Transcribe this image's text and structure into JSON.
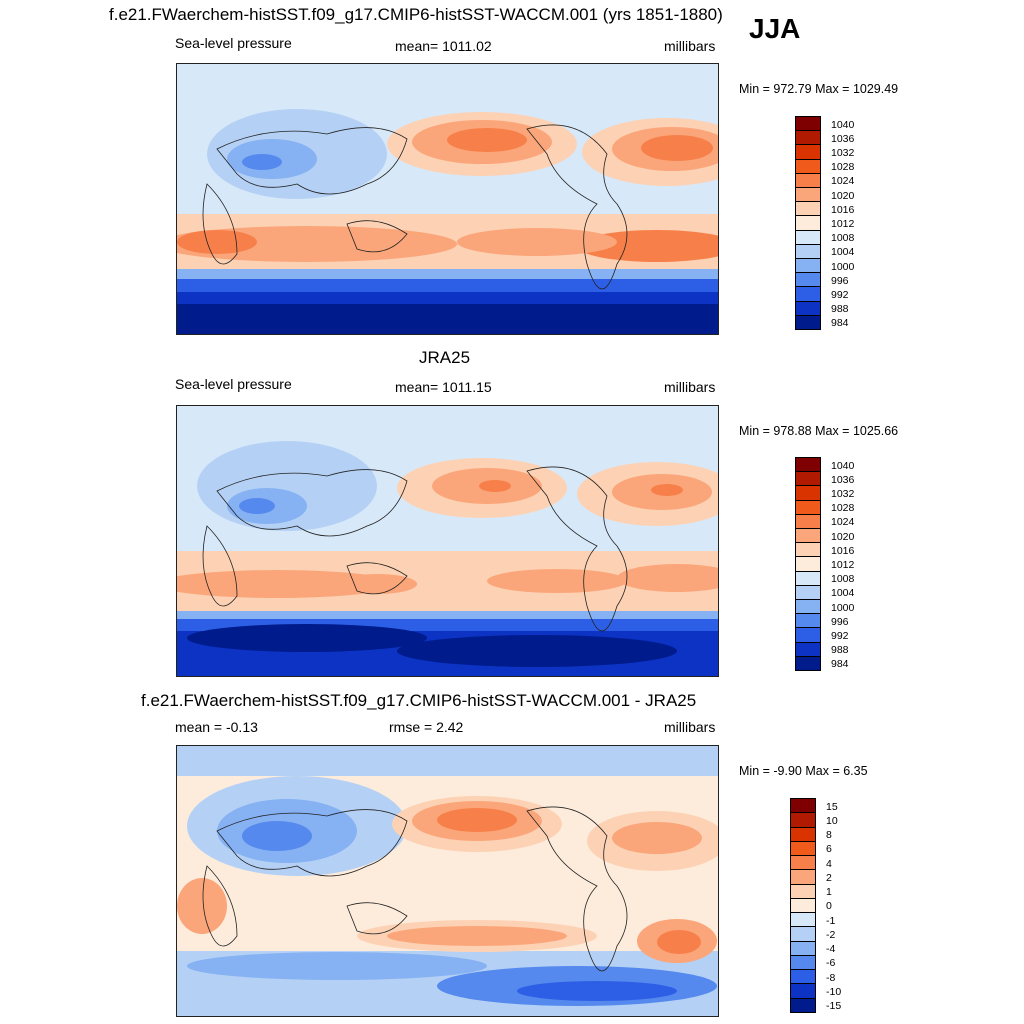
{
  "header": {
    "title": "f.e21.FWaerchem-histSST.f09_g17.CMIP6-histSST-WACCM.001 (yrs 1851-1880)",
    "season": "JJA"
  },
  "panels": [
    {
      "id": "model",
      "heading": "",
      "left_label": "Sea-level pressure",
      "center_label": "mean= 1011.02",
      "right_label": "millibars",
      "minmax": "Min = 972.79 Max = 1029.49",
      "colorbar": {
        "labels": [
          "1040",
          "1036",
          "1032",
          "1028",
          "1024",
          "1020",
          "1016",
          "1012",
          "1008",
          "1004",
          "1000",
          "996",
          "992",
          "988",
          "984"
        ],
        "colors": [
          "#7f0000",
          "#b01a00",
          "#d93300",
          "#f05a1a",
          "#f7804a",
          "#fba67a",
          "#fdd2b4",
          "#fdecdc",
          "#d7e8f8",
          "#b4d1f5",
          "#86b1f2",
          "#5589ee",
          "#2d5fe6",
          "#0c33c4",
          "#001b8c"
        ]
      }
    },
    {
      "id": "obs",
      "heading": "JRA25",
      "left_label": "Sea-level pressure",
      "center_label": "mean= 1011.15",
      "right_label": "millibars",
      "minmax": "Min = 978.88 Max = 1025.66",
      "colorbar": {
        "labels": [
          "1040",
          "1036",
          "1032",
          "1028",
          "1024",
          "1020",
          "1016",
          "1012",
          "1008",
          "1004",
          "1000",
          "996",
          "992",
          "988",
          "984"
        ],
        "colors": [
          "#7f0000",
          "#b01a00",
          "#d93300",
          "#f05a1a",
          "#f7804a",
          "#fba67a",
          "#fdd2b4",
          "#fdecdc",
          "#d7e8f8",
          "#b4d1f5",
          "#86b1f2",
          "#5589ee",
          "#2d5fe6",
          "#0c33c4",
          "#001b8c"
        ]
      }
    },
    {
      "id": "diff",
      "heading": "f.e21.FWaerchem-histSST.f09_g17.CMIP6-histSST-WACCM.001 - JRA25",
      "left_label": "mean =  -0.13",
      "center_label": "rmse =   2.42",
      "right_label": "millibars",
      "minmax": "Min =  -9.90 Max =   6.35",
      "colorbar": {
        "labels": [
          "15",
          "10",
          "8",
          "6",
          "4",
          "2",
          "1",
          "0",
          "-1",
          "-2",
          "-4",
          "-6",
          "-8",
          "-10",
          "-15"
        ],
        "colors": [
          "#7f0000",
          "#b01a00",
          "#d93300",
          "#f05a1a",
          "#f7804a",
          "#fba67a",
          "#fdd2b4",
          "#fdecdc",
          "#d7e8f8",
          "#b4d1f5",
          "#86b1f2",
          "#5589ee",
          "#2d5fe6",
          "#0c33c4",
          "#001b8c"
        ]
      }
    }
  ]
}
